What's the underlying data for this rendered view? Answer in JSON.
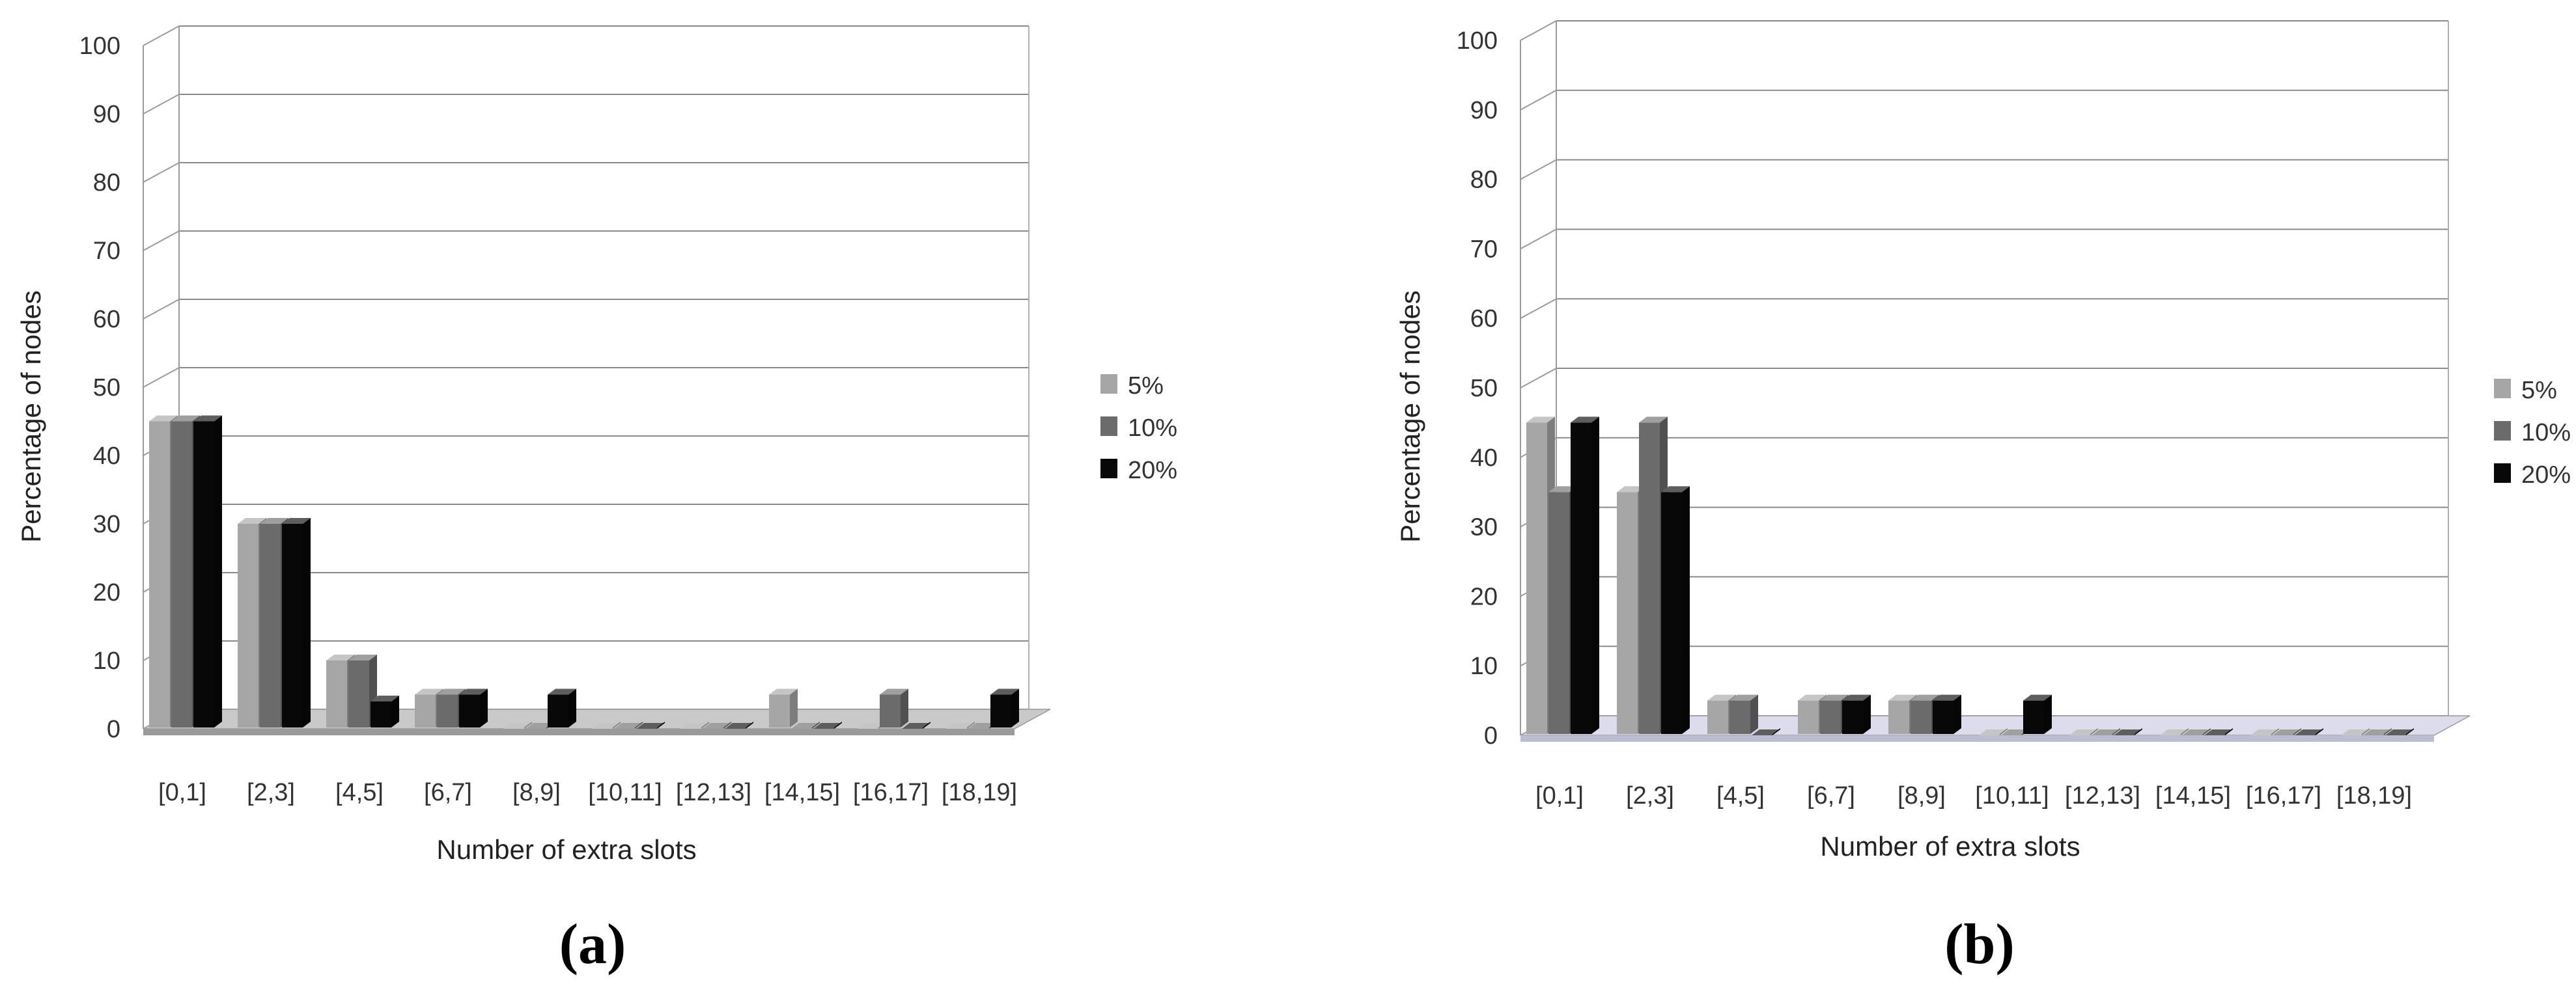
{
  "figure": {
    "panel_labels": [
      "(a)",
      "(b)"
    ]
  },
  "chart_data": [
    {
      "type": "bar",
      "title": "",
      "xlabel": "Number of extra slots",
      "ylabel": "Percentage of nodes",
      "ylim": [
        0,
        100
      ],
      "yticks": [
        0,
        10,
        20,
        30,
        40,
        50,
        60,
        70,
        80,
        90,
        100
      ],
      "grid": true,
      "legend_position": "right",
      "categories": [
        "[0,1]",
        "[2,3]",
        "[4,5]",
        "[6,7]",
        "[8,9]",
        "[10,11]",
        "[12,13]",
        "[14,15]",
        "[16,17]",
        "[18,19]"
      ],
      "series": [
        {
          "name": "5%",
          "color": "#a6a6a6",
          "values": [
            45,
            30,
            10,
            5,
            0,
            0,
            0,
            5,
            0,
            0
          ]
        },
        {
          "name": "10%",
          "color": "#6b6b6b",
          "values": [
            45,
            30,
            10,
            5,
            0,
            0,
            0,
            0,
            5,
            0
          ]
        },
        {
          "name": "20%",
          "color": "#080808",
          "values": [
            45,
            30,
            4,
            5,
            5,
            0,
            0,
            0,
            0,
            5
          ]
        }
      ]
    },
    {
      "type": "bar",
      "title": "",
      "xlabel": "Number of extra slots",
      "ylabel": "Percentage of nodes",
      "ylim": [
        0,
        100
      ],
      "yticks": [
        0,
        10,
        20,
        30,
        40,
        50,
        60,
        70,
        80,
        90,
        100
      ],
      "grid": true,
      "legend_position": "right",
      "categories": [
        "[0,1]",
        "[2,3]",
        "[4,5]",
        "[6,7]",
        "[8,9]",
        "[10,11]",
        "[12,13]",
        "[14,15]",
        "[16,17]",
        "[18,19]"
      ],
      "series": [
        {
          "name": "5%",
          "color": "#a6a6a6",
          "values": [
            45,
            35,
            5,
            5,
            5,
            0,
            0,
            0,
            0,
            0
          ]
        },
        {
          "name": "10%",
          "color": "#6b6b6b",
          "values": [
            35,
            45,
            5,
            5,
            5,
            0,
            0,
            0,
            0,
            0
          ]
        },
        {
          "name": "20%",
          "color": "#080808",
          "values": [
            45,
            35,
            0,
            5,
            5,
            5,
            0,
            0,
            0,
            0
          ]
        }
      ]
    }
  ]
}
